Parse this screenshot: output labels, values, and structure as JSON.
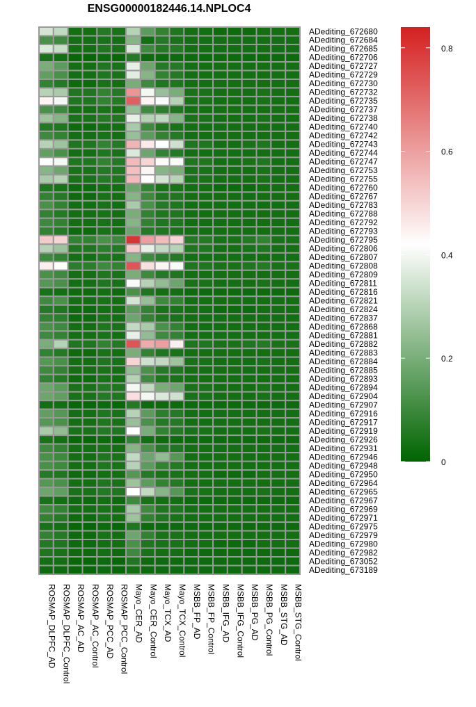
{
  "chart_data": {
    "type": "heatmap",
    "title": "ENSG00000182446.14.NPLOC4",
    "columns": [
      "ROSMAP_DLPFC_AD",
      "ROSMAP_DLPFC_Control",
      "ROSMAP_AC_AD",
      "ROSMAP_AC_Control",
      "ROSMAP_PCC_AD",
      "ROSMAP_PCC_Control",
      "Mayo_CER_AD",
      "Mayo_CER_Control",
      "Mayo_TCX_AD",
      "Mayo_TCX_Control",
      "MSBB_FP_AD",
      "MSBB_FP_Control",
      "MSBB_IFG_AD",
      "MSBB_IFG_Control",
      "MSBB_PG_AD",
      "MSBB_PG_Control",
      "MSBB_STG_AD",
      "MSBB_STG_Control"
    ],
    "rows": [
      "ADediting_672680",
      "ADediting_672684",
      "ADediting_672685",
      "ADediting_672706",
      "ADediting_672727",
      "ADediting_672729",
      "ADediting_672730",
      "ADediting_672732",
      "ADediting_672735",
      "ADediting_672737",
      "ADediting_672738",
      "ADediting_672740",
      "ADediting_672742",
      "ADediting_672743",
      "ADediting_672744",
      "ADediting_672747",
      "ADediting_672753",
      "ADediting_672755",
      "ADediting_672760",
      "ADediting_672767",
      "ADediting_672783",
      "ADediting_672788",
      "ADediting_672792",
      "ADediting_672793",
      "ADediting_672795",
      "ADediting_672806",
      "ADediting_672807",
      "ADediting_672808",
      "ADediting_672809",
      "ADediting_672811",
      "ADediting_672816",
      "ADediting_672821",
      "ADediting_672824",
      "ADediting_672837",
      "ADediting_672868",
      "ADediting_672881",
      "ADediting_672882",
      "ADediting_672883",
      "ADediting_672884",
      "ADediting_672885",
      "ADediting_672893",
      "ADediting_672894",
      "ADediting_672904",
      "ADediting_672907",
      "ADediting_672916",
      "ADediting_672917",
      "ADediting_672919",
      "ADediting_672926",
      "ADediting_672931",
      "ADediting_672946",
      "ADediting_672948",
      "ADediting_672950",
      "ADediting_672964",
      "ADediting_672965",
      "ADediting_672967",
      "ADediting_672969",
      "ADediting_672971",
      "ADediting_672975",
      "ADediting_672979",
      "ADediting_672980",
      "ADediting_672982",
      "ADediting_673052",
      "ADediting_673189"
    ],
    "values": [
      [
        0.35,
        0.32,
        0.03,
        0.03,
        0.06,
        0.04,
        0.3,
        0.15,
        0.08,
        0.05,
        0.03,
        0.03,
        0.02,
        0.02,
        0.02,
        0.03,
        0.03,
        0.03
      ],
      [
        0.12,
        0.1,
        0.03,
        0.03,
        0.04,
        0.03,
        0.22,
        0.03,
        0.06,
        0.04,
        0.03,
        0.03,
        0.03,
        0.03,
        0.03,
        0.03,
        0.03,
        0.03
      ],
      [
        0.36,
        0.33,
        0.03,
        0.03,
        0.05,
        0.04,
        0.36,
        0.1,
        0.06,
        0.06,
        0.03,
        0.03,
        0.03,
        0.03,
        0.03,
        0.03,
        0.03,
        0.03
      ],
      [
        0.04,
        0.03,
        0.01,
        0.01,
        0.02,
        0.01,
        0.06,
        0.02,
        0.02,
        0.02,
        0.02,
        0.02,
        0.02,
        0.02,
        0.02,
        0.02,
        0.02,
        0.02
      ],
      [
        0.2,
        0.15,
        0.03,
        0.03,
        0.05,
        0.04,
        0.38,
        0.18,
        0.06,
        0.06,
        0.03,
        0.03,
        0.03,
        0.03,
        0.03,
        0.03,
        0.03,
        0.03
      ],
      [
        0.16,
        0.12,
        0.03,
        0.03,
        0.05,
        0.04,
        0.37,
        0.22,
        0.08,
        0.06,
        0.03,
        0.03,
        0.03,
        0.03,
        0.03,
        0.03,
        0.03,
        0.03
      ],
      [
        0.08,
        0.06,
        0.02,
        0.02,
        0.04,
        0.03,
        0.2,
        0.1,
        0.05,
        0.05,
        0.03,
        0.03,
        0.03,
        0.03,
        0.03,
        0.03,
        0.03,
        0.03
      ],
      [
        0.3,
        0.28,
        0.05,
        0.05,
        0.08,
        0.06,
        0.62,
        0.4,
        0.25,
        0.2,
        0.04,
        0.04,
        0.03,
        0.03,
        0.03,
        0.04,
        0.03,
        0.03
      ],
      [
        0.44,
        0.4,
        0.05,
        0.05,
        0.08,
        0.06,
        0.72,
        0.44,
        0.41,
        0.3,
        0.04,
        0.04,
        0.03,
        0.03,
        0.03,
        0.04,
        0.03,
        0.03
      ],
      [
        0.12,
        0.1,
        0.03,
        0.03,
        0.04,
        0.03,
        0.25,
        0.1,
        0.07,
        0.05,
        0.03,
        0.03,
        0.03,
        0.03,
        0.03,
        0.03,
        0.03,
        0.03
      ],
      [
        0.26,
        0.22,
        0.04,
        0.04,
        0.06,
        0.05,
        0.38,
        0.3,
        0.32,
        0.22,
        0.04,
        0.04,
        0.03,
        0.03,
        0.03,
        0.04,
        0.03,
        0.03
      ],
      [
        0.06,
        0.05,
        0.02,
        0.02,
        0.03,
        0.03,
        0.28,
        0.1,
        0.05,
        0.04,
        0.03,
        0.03,
        0.03,
        0.03,
        0.03,
        0.03,
        0.03,
        0.03
      ],
      [
        0.1,
        0.08,
        0.03,
        0.03,
        0.04,
        0.03,
        0.25,
        0.15,
        0.08,
        0.06,
        0.03,
        0.03,
        0.03,
        0.03,
        0.03,
        0.03,
        0.03,
        0.03
      ],
      [
        0.3,
        0.26,
        0.05,
        0.05,
        0.08,
        0.06,
        0.56,
        0.46,
        0.42,
        0.34,
        0.05,
        0.05,
        0.03,
        0.03,
        0.04,
        0.05,
        0.03,
        0.03
      ],
      [
        0.16,
        0.12,
        0.03,
        0.03,
        0.05,
        0.04,
        0.36,
        0.18,
        0.08,
        0.06,
        0.03,
        0.03,
        0.03,
        0.03,
        0.03,
        0.03,
        0.03,
        0.03
      ],
      [
        0.42,
        0.4,
        0.05,
        0.05,
        0.08,
        0.06,
        0.55,
        0.5,
        0.43,
        0.41,
        0.05,
        0.05,
        0.03,
        0.03,
        0.04,
        0.05,
        0.03,
        0.03
      ],
      [
        0.22,
        0.18,
        0.04,
        0.04,
        0.06,
        0.05,
        0.54,
        0.44,
        0.22,
        0.2,
        0.04,
        0.04,
        0.03,
        0.03,
        0.03,
        0.04,
        0.03,
        0.03
      ],
      [
        0.28,
        0.3,
        0.04,
        0.04,
        0.06,
        0.05,
        0.55,
        0.42,
        0.35,
        0.3,
        0.04,
        0.04,
        0.03,
        0.03,
        0.03,
        0.04,
        0.03,
        0.03
      ],
      [
        0.05,
        0.04,
        0.02,
        0.02,
        0.03,
        0.03,
        0.18,
        0.08,
        0.04,
        0.04,
        0.03,
        0.03,
        0.02,
        0.02,
        0.02,
        0.03,
        0.03,
        0.03
      ],
      [
        0.08,
        0.06,
        0.02,
        0.02,
        0.04,
        0.03,
        0.22,
        0.1,
        0.05,
        0.05,
        0.03,
        0.03,
        0.03,
        0.03,
        0.03,
        0.03,
        0.03,
        0.03
      ],
      [
        0.12,
        0.08,
        0.03,
        0.03,
        0.04,
        0.03,
        0.28,
        0.12,
        0.06,
        0.05,
        0.03,
        0.03,
        0.03,
        0.03,
        0.03,
        0.03,
        0.03,
        0.03
      ],
      [
        0.08,
        0.06,
        0.03,
        0.03,
        0.04,
        0.03,
        0.2,
        0.08,
        0.05,
        0.05,
        0.03,
        0.03,
        0.03,
        0.03,
        0.03,
        0.03,
        0.03,
        0.03
      ],
      [
        0.1,
        0.08,
        0.03,
        0.03,
        0.04,
        0.03,
        0.22,
        0.08,
        0.05,
        0.05,
        0.03,
        0.03,
        0.03,
        0.03,
        0.03,
        0.03,
        0.03,
        0.03
      ],
      [
        0.08,
        0.06,
        0.02,
        0.02,
        0.04,
        0.03,
        0.18,
        0.06,
        0.05,
        0.04,
        0.03,
        0.03,
        0.03,
        0.03,
        0.03,
        0.03,
        0.03,
        0.03
      ],
      [
        0.52,
        0.5,
        0.08,
        0.08,
        0.12,
        0.1,
        0.8,
        0.6,
        0.55,
        0.5,
        0.06,
        0.06,
        0.04,
        0.04,
        0.06,
        0.08,
        0.04,
        0.04
      ],
      [
        0.3,
        0.26,
        0.05,
        0.05,
        0.07,
        0.06,
        0.52,
        0.38,
        0.32,
        0.3,
        0.05,
        0.05,
        0.03,
        0.03,
        0.04,
        0.05,
        0.03,
        0.03
      ],
      [
        0.1,
        0.08,
        0.03,
        0.03,
        0.05,
        0.04,
        0.22,
        0.1,
        0.07,
        0.06,
        0.03,
        0.03,
        0.03,
        0.03,
        0.03,
        0.03,
        0.03,
        0.03
      ],
      [
        0.45,
        0.42,
        0.07,
        0.07,
        0.1,
        0.08,
        0.74,
        0.48,
        0.44,
        0.41,
        0.05,
        0.05,
        0.04,
        0.04,
        0.05,
        0.06,
        0.04,
        0.04
      ],
      [
        0.12,
        0.1,
        0.03,
        0.03,
        0.05,
        0.04,
        0.2,
        0.1,
        0.06,
        0.05,
        0.03,
        0.03,
        0.03,
        0.03,
        0.03,
        0.03,
        0.03,
        0.03
      ],
      [
        0.14,
        0.12,
        0.03,
        0.03,
        0.05,
        0.04,
        0.41,
        0.3,
        0.24,
        0.18,
        0.04,
        0.04,
        0.03,
        0.03,
        0.03,
        0.04,
        0.03,
        0.03
      ],
      [
        0.04,
        0.03,
        0.02,
        0.02,
        0.03,
        0.02,
        0.12,
        0.05,
        0.03,
        0.03,
        0.02,
        0.02,
        0.02,
        0.02,
        0.02,
        0.02,
        0.02,
        0.02
      ],
      [
        0.1,
        0.12,
        0.03,
        0.03,
        0.04,
        0.03,
        0.35,
        0.25,
        0.1,
        0.08,
        0.03,
        0.03,
        0.03,
        0.03,
        0.03,
        0.03,
        0.03,
        0.03
      ],
      [
        0.06,
        0.05,
        0.02,
        0.02,
        0.03,
        0.03,
        0.15,
        0.08,
        0.04,
        0.04,
        0.03,
        0.03,
        0.02,
        0.02,
        0.02,
        0.03,
        0.03,
        0.03
      ],
      [
        0.08,
        0.07,
        0.02,
        0.02,
        0.04,
        0.03,
        0.18,
        0.08,
        0.05,
        0.04,
        0.03,
        0.03,
        0.03,
        0.03,
        0.03,
        0.03,
        0.03,
        0.03
      ],
      [
        0.12,
        0.1,
        0.03,
        0.03,
        0.05,
        0.04,
        0.32,
        0.28,
        0.12,
        0.08,
        0.03,
        0.03,
        0.03,
        0.03,
        0.03,
        0.03,
        0.03,
        0.03
      ],
      [
        0.1,
        0.08,
        0.03,
        0.03,
        0.04,
        0.03,
        0.38,
        0.24,
        0.1,
        0.08,
        0.03,
        0.03,
        0.03,
        0.03,
        0.03,
        0.03,
        0.03,
        0.03
      ],
      [
        0.2,
        0.3,
        0.05,
        0.05,
        0.08,
        0.06,
        0.74,
        0.58,
        0.6,
        0.45,
        0.05,
        0.05,
        0.04,
        0.04,
        0.05,
        0.06,
        0.04,
        0.04
      ],
      [
        0.08,
        0.06,
        0.02,
        0.02,
        0.04,
        0.03,
        0.2,
        0.08,
        0.05,
        0.04,
        0.03,
        0.03,
        0.03,
        0.03,
        0.03,
        0.03,
        0.03,
        0.03
      ],
      [
        0.14,
        0.12,
        0.03,
        0.03,
        0.05,
        0.04,
        0.5,
        0.34,
        0.32,
        0.26,
        0.04,
        0.04,
        0.03,
        0.03,
        0.03,
        0.04,
        0.03,
        0.03
      ],
      [
        0.1,
        0.08,
        0.03,
        0.03,
        0.04,
        0.03,
        0.24,
        0.12,
        0.06,
        0.05,
        0.03,
        0.03,
        0.03,
        0.03,
        0.03,
        0.03,
        0.03,
        0.03
      ],
      [
        0.08,
        0.06,
        0.02,
        0.02,
        0.04,
        0.03,
        0.3,
        0.1,
        0.05,
        0.04,
        0.03,
        0.03,
        0.03,
        0.03,
        0.03,
        0.03,
        0.03,
        0.03
      ],
      [
        0.18,
        0.15,
        0.04,
        0.04,
        0.06,
        0.05,
        0.4,
        0.32,
        0.2,
        0.18,
        0.04,
        0.04,
        0.03,
        0.03,
        0.03,
        0.04,
        0.03,
        0.03
      ],
      [
        0.18,
        0.16,
        0.04,
        0.04,
        0.06,
        0.05,
        0.48,
        0.4,
        0.36,
        0.34,
        0.04,
        0.04,
        0.03,
        0.03,
        0.03,
        0.04,
        0.03,
        0.03
      ],
      [
        0.03,
        0.03,
        0.01,
        0.01,
        0.02,
        0.01,
        0.06,
        0.02,
        0.02,
        0.02,
        0.02,
        0.02,
        0.02,
        0.02,
        0.02,
        0.02,
        0.02,
        0.02
      ],
      [
        0.16,
        0.14,
        0.03,
        0.03,
        0.05,
        0.04,
        0.3,
        0.15,
        0.07,
        0.06,
        0.03,
        0.03,
        0.03,
        0.03,
        0.03,
        0.03,
        0.03,
        0.03
      ],
      [
        0.14,
        0.12,
        0.03,
        0.03,
        0.05,
        0.04,
        0.25,
        0.12,
        0.06,
        0.06,
        0.03,
        0.03,
        0.03,
        0.03,
        0.03,
        0.03,
        0.03,
        0.03
      ],
      [
        0.28,
        0.24,
        0.04,
        0.04,
        0.06,
        0.05,
        0.42,
        0.2,
        0.08,
        0.06,
        0.04,
        0.04,
        0.03,
        0.03,
        0.03,
        0.04,
        0.03,
        0.03
      ],
      [
        0.04,
        0.03,
        0.01,
        0.01,
        0.02,
        0.01,
        0.08,
        0.03,
        0.02,
        0.02,
        0.02,
        0.02,
        0.02,
        0.02,
        0.02,
        0.02,
        0.02,
        0.02
      ],
      [
        0.1,
        0.08,
        0.03,
        0.03,
        0.04,
        0.03,
        0.22,
        0.12,
        0.06,
        0.05,
        0.03,
        0.03,
        0.03,
        0.03,
        0.03,
        0.03,
        0.03,
        0.03
      ],
      [
        0.12,
        0.1,
        0.03,
        0.03,
        0.05,
        0.04,
        0.32,
        0.18,
        0.24,
        0.14,
        0.03,
        0.03,
        0.03,
        0.03,
        0.03,
        0.03,
        0.03,
        0.03
      ],
      [
        0.12,
        0.1,
        0.03,
        0.03,
        0.05,
        0.04,
        0.3,
        0.15,
        0.08,
        0.06,
        0.03,
        0.03,
        0.03,
        0.03,
        0.03,
        0.03,
        0.03,
        0.03
      ],
      [
        0.06,
        0.05,
        0.02,
        0.02,
        0.03,
        0.03,
        0.14,
        0.06,
        0.04,
        0.04,
        0.03,
        0.03,
        0.02,
        0.02,
        0.02,
        0.03,
        0.03,
        0.03
      ],
      [
        0.14,
        0.12,
        0.03,
        0.03,
        0.05,
        0.04,
        0.26,
        0.15,
        0.08,
        0.06,
        0.03,
        0.03,
        0.03,
        0.03,
        0.03,
        0.03,
        0.03,
        0.03
      ],
      [
        0.18,
        0.16,
        0.04,
        0.04,
        0.06,
        0.05,
        0.42,
        0.32,
        0.22,
        0.14,
        0.04,
        0.04,
        0.03,
        0.03,
        0.03,
        0.04,
        0.03,
        0.03
      ],
      [
        0.04,
        0.03,
        0.02,
        0.02,
        0.03,
        0.02,
        0.1,
        0.04,
        0.03,
        0.03,
        0.02,
        0.02,
        0.02,
        0.02,
        0.02,
        0.02,
        0.02,
        0.02
      ],
      [
        0.1,
        0.08,
        0.03,
        0.03,
        0.04,
        0.03,
        0.28,
        0.1,
        0.05,
        0.05,
        0.03,
        0.03,
        0.03,
        0.03,
        0.03,
        0.03,
        0.03,
        0.03
      ],
      [
        0.08,
        0.06,
        0.02,
        0.02,
        0.04,
        0.03,
        0.26,
        0.08,
        0.05,
        0.04,
        0.03,
        0.03,
        0.03,
        0.03,
        0.03,
        0.03,
        0.03,
        0.03
      ],
      [
        0.04,
        0.03,
        0.01,
        0.01,
        0.02,
        0.01,
        0.05,
        0.02,
        0.02,
        0.02,
        0.02,
        0.02,
        0.02,
        0.02,
        0.02,
        0.02,
        0.02,
        0.02
      ],
      [
        0.08,
        0.06,
        0.02,
        0.02,
        0.04,
        0.03,
        0.18,
        0.08,
        0.04,
        0.04,
        0.03,
        0.03,
        0.03,
        0.03,
        0.03,
        0.03,
        0.03,
        0.03
      ],
      [
        0.06,
        0.05,
        0.02,
        0.02,
        0.03,
        0.03,
        0.12,
        0.05,
        0.04,
        0.04,
        0.03,
        0.03,
        0.02,
        0.02,
        0.02,
        0.03,
        0.03,
        0.03
      ],
      [
        0.05,
        0.04,
        0.02,
        0.02,
        0.03,
        0.02,
        0.1,
        0.04,
        0.03,
        0.03,
        0.02,
        0.02,
        0.02,
        0.02,
        0.02,
        0.02,
        0.02,
        0.02
      ],
      [
        0.03,
        0.03,
        0.01,
        0.01,
        0.02,
        0.01,
        0.05,
        0.02,
        0.02,
        0.02,
        0.02,
        0.02,
        0.02,
        0.02,
        0.02,
        0.02,
        0.02,
        0.02
      ],
      [
        0.02,
        0.02,
        0.01,
        0.01,
        0.02,
        0.01,
        0.03,
        0.02,
        0.02,
        0.02,
        0.02,
        0.02,
        0.02,
        0.02,
        0.02,
        0.02,
        0.02,
        0.02
      ]
    ],
    "color_scale": {
      "min": 0,
      "mid": 0.42,
      "max": 0.84,
      "low_color": "#006400",
      "mid_color": "#ffffff",
      "high_color": "#d42020"
    },
    "legend_ticks": [
      0,
      0.2,
      0.4,
      0.6,
      0.8
    ],
    "legend_tick_labels": [
      "0",
      "0.2",
      "0.4",
      "0.6",
      "0.8"
    ],
    "grid_color": "#999999",
    "legend_position": "right"
  }
}
